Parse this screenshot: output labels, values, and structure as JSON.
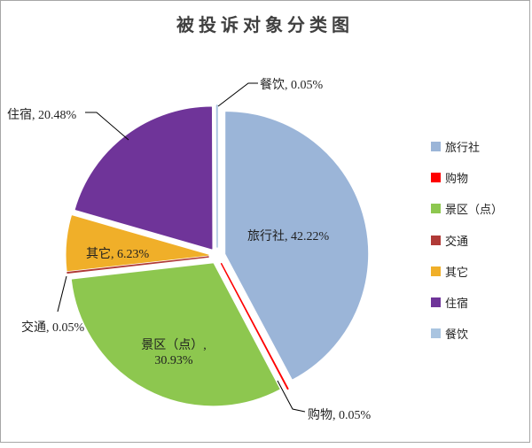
{
  "chart_data": {
    "type": "pie",
    "title": "被投诉对象分类图",
    "legend_position": "right",
    "start_angle_deg": 0,
    "direction": "clockwise",
    "value_format": "percent",
    "slices": [
      {
        "key": "travel-agency",
        "name": "旅行社",
        "value": 42.22,
        "label": "旅行社, 42.22%",
        "color": "#9BB5D8",
        "label_placement": "inside"
      },
      {
        "key": "shopping",
        "name": "购物",
        "value": 0.05,
        "label": "购物, 0.05%",
        "color": "#FE0000",
        "label_placement": "outside"
      },
      {
        "key": "scenic-spot",
        "name": "景区（点）",
        "value": 30.93,
        "label": "景区（点）, 30.93%",
        "label_line1": "景区（点）,",
        "label_line2": "30.93%",
        "color": "#8DC74F",
        "label_placement": "inside"
      },
      {
        "key": "transport",
        "name": "交通",
        "value": 0.05,
        "label": "交通, 0.05%",
        "color": "#B03A37",
        "label_placement": "outside"
      },
      {
        "key": "other",
        "name": "其它",
        "value": 6.23,
        "label": "其它, 6.23%",
        "color": "#F0AF29",
        "label_placement": "inside"
      },
      {
        "key": "lodging",
        "name": "住宿",
        "value": 20.48,
        "label": "住宿, 20.48%",
        "color": "#6F3499",
        "label_placement": "outside"
      },
      {
        "key": "dining",
        "name": "餐饮",
        "value": 0.05,
        "label": "餐饮, 0.05%",
        "color": "#A9C4E0",
        "label_placement": "outside"
      }
    ]
  },
  "colors": {
    "background": "#FFFFFF",
    "frame_border": "#A6A6A6",
    "leader_line": "#000000",
    "title_text": "#404040",
    "label_text": "#1F1F1F"
  }
}
